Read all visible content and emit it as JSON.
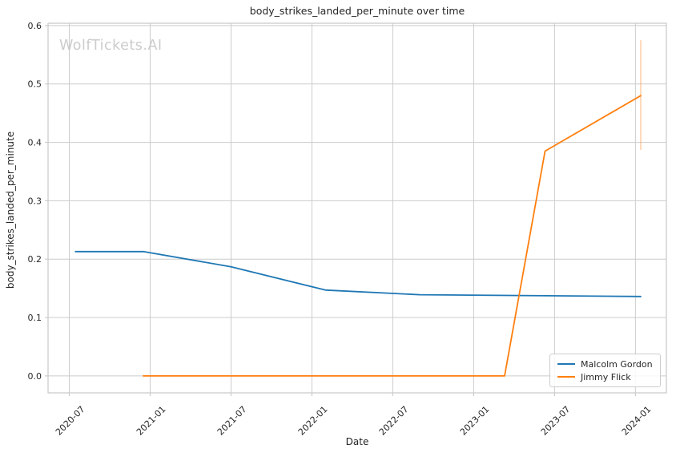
{
  "watermark": "WolfTickets.AI",
  "chart_data": {
    "type": "line",
    "title": "body_strikes_landed_per_minute over time",
    "xlabel": "Date",
    "ylabel": "body_strikes_landed_per_minute",
    "x_ticks": [
      "2020-07",
      "2021-01",
      "2021-07",
      "2022-01",
      "2022-07",
      "2023-01",
      "2023-07",
      "2024-01"
    ],
    "y_ticks": [
      "0.0",
      "0.1",
      "0.2",
      "0.3",
      "0.4",
      "0.5",
      "0.6"
    ],
    "xlim_dates": [
      "2020-05-14",
      "2024-03-10"
    ],
    "ylim": [
      -0.029,
      0.604
    ],
    "grid": true,
    "legend_position": "lower right",
    "series": [
      {
        "name": "Malcolm Gordon",
        "color": "#1f77b4",
        "points": [
          {
            "date": "2020-07-15",
            "value": 0.213
          },
          {
            "date": "2020-12-16",
            "value": 0.213
          },
          {
            "date": "2021-07-01",
            "value": 0.187
          },
          {
            "date": "2022-02-01",
            "value": 0.147
          },
          {
            "date": "2022-09-01",
            "value": 0.139
          },
          {
            "date": "2024-01-13",
            "value": 0.136
          }
        ]
      },
      {
        "name": "Jimmy Flick",
        "color": "#ff7f0e",
        "points": [
          {
            "date": "2020-12-16",
            "value": 0.0
          },
          {
            "date": "2023-03-10",
            "value": 0.0
          },
          {
            "date": "2023-06-10",
            "value": 0.385
          },
          {
            "date": "2024-01-13",
            "value": 0.48
          }
        ],
        "error_bar": {
          "date": "2024-01-13",
          "low": 0.387,
          "high": 0.575
        }
      }
    ]
  },
  "style": {
    "grid_color": "#cccccc",
    "border_color": "#c8c8c8",
    "tick_color": "#cccccc",
    "text_color": "#262626",
    "watermark_color": "#cccccc",
    "background": "#ffffff"
  }
}
